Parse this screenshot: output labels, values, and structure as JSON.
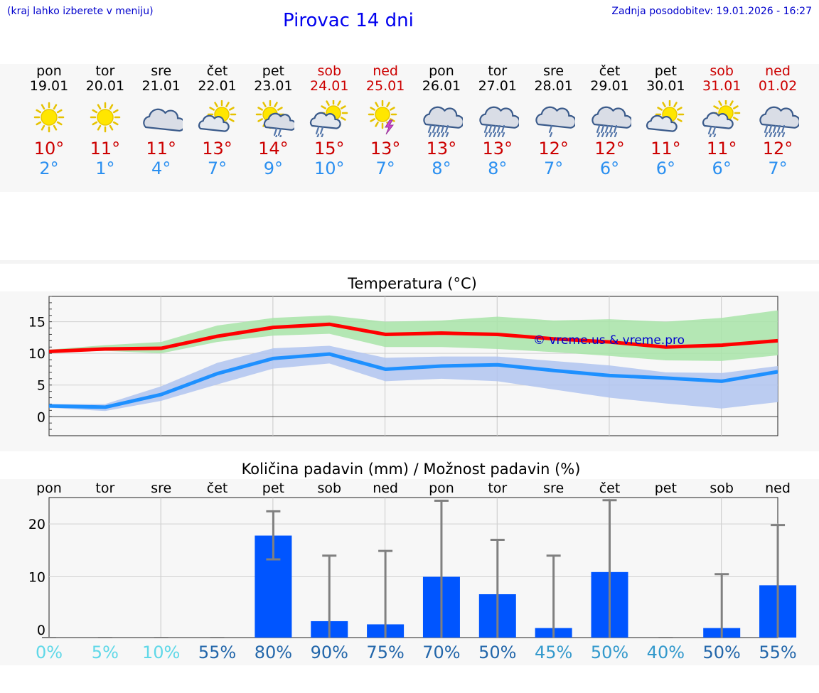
{
  "header": {
    "hint": "(kraj lahko izberete v meniju)",
    "title": "Pirovac 14 dni",
    "updated": "Zadnja posodobitev: 19.01.2026 - 16:27"
  },
  "days": [
    {
      "name": "pon",
      "date": "19.01",
      "weekend": false,
      "icon": "sunny",
      "tmax": "10°",
      "tmin": "2°"
    },
    {
      "name": "tor",
      "date": "20.01",
      "weekend": false,
      "icon": "sunny",
      "tmax": "11°",
      "tmin": "1°"
    },
    {
      "name": "sre",
      "date": "21.01",
      "weekend": false,
      "icon": "cloudy",
      "tmax": "11°",
      "tmin": "4°"
    },
    {
      "name": "čet",
      "date": "22.01",
      "weekend": false,
      "icon": "partly-cloudy",
      "tmax": "13°",
      "tmin": "7°"
    },
    {
      "name": "pet",
      "date": "23.01",
      "weekend": false,
      "icon": "partly-cloudy-rain",
      "tmax": "14°",
      "tmin": "9°"
    },
    {
      "name": "sob",
      "date": "24.01",
      "weekend": true,
      "icon": "partly-cloudy-light-rain",
      "tmax": "15°",
      "tmin": "10°"
    },
    {
      "name": "ned",
      "date": "25.01",
      "weekend": true,
      "icon": "sun-thunder",
      "tmax": "13°",
      "tmin": "7°"
    },
    {
      "name": "pon",
      "date": "26.01",
      "weekend": false,
      "icon": "cloud-rain",
      "tmax": "13°",
      "tmin": "8°"
    },
    {
      "name": "tor",
      "date": "27.01",
      "weekend": false,
      "icon": "cloud-rain",
      "tmax": "13°",
      "tmin": "8°"
    },
    {
      "name": "sre",
      "date": "28.01",
      "weekend": false,
      "icon": "cloud-light-rain",
      "tmax": "12°",
      "tmin": "7°"
    },
    {
      "name": "čet",
      "date": "29.01",
      "weekend": false,
      "icon": "cloud-rain",
      "tmax": "12°",
      "tmin": "6°"
    },
    {
      "name": "pet",
      "date": "30.01",
      "weekend": false,
      "icon": "partly-cloudy",
      "tmax": "11°",
      "tmin": "6°"
    },
    {
      "name": "sob",
      "date": "31.01",
      "weekend": true,
      "icon": "partly-cloudy-light-rain",
      "tmax": "11°",
      "tmin": "6°"
    },
    {
      "name": "ned",
      "date": "01.02",
      "weekend": true,
      "icon": "cloud-rain",
      "tmax": "12°",
      "tmin": "7°"
    }
  ],
  "colors": {
    "max_line": "#ff0000",
    "min_line": "#1e90ff",
    "max_band": "#a8e4a8",
    "min_band": "#b0c4f0",
    "overlap_band": "#80c8a8",
    "bar": "#0055ff",
    "errorbar": "#808080",
    "watermark": "#0000cc"
  },
  "chart_data": [
    {
      "type": "line",
      "title": "Temperatura (°C)",
      "ylim": [
        -3,
        19
      ],
      "yticks": [
        0,
        5,
        10,
        15
      ],
      "watermark": "© vreme.us & vreme.pro",
      "x": [
        0,
        1,
        2,
        3,
        4,
        5,
        6,
        7,
        8,
        9,
        10,
        11,
        12,
        13
      ],
      "series": [
        {
          "name": "max",
          "values": [
            10.3,
            10.7,
            10.8,
            12.7,
            14.1,
            14.6,
            13.0,
            13.2,
            13.0,
            12.3,
            11.8,
            11.0,
            11.3,
            12.0
          ],
          "band_low": [
            10.3,
            10.4,
            10.0,
            11.8,
            12.8,
            13.1,
            11.0,
            11.0,
            10.7,
            10.2,
            9.6,
            8.9,
            8.8,
            9.7
          ],
          "band_high": [
            10.6,
            11.3,
            11.8,
            14.4,
            15.6,
            16.0,
            15.0,
            15.2,
            15.8,
            15.2,
            15.4,
            15.0,
            15.6,
            16.8
          ]
        },
        {
          "name": "min",
          "values": [
            1.7,
            1.5,
            3.5,
            6.8,
            9.2,
            9.9,
            7.5,
            8.0,
            8.2,
            7.3,
            6.5,
            6.1,
            5.6,
            7.1
          ],
          "band_low": [
            1.4,
            0.9,
            2.5,
            5.1,
            7.6,
            8.4,
            5.6,
            6.0,
            5.6,
            4.3,
            3.0,
            2.1,
            1.3,
            2.3
          ],
          "band_high": [
            2.0,
            2.0,
            4.8,
            8.5,
            10.8,
            11.2,
            9.3,
            9.5,
            9.5,
            8.8,
            8.1,
            7.0,
            6.9,
            8.0
          ]
        }
      ]
    },
    {
      "type": "bar",
      "title": "Količina padavin (mm) / Možnost padavin (%)",
      "ylim": [
        -1.5,
        25
      ],
      "yticks": [
        0,
        10,
        20
      ],
      "categories": [
        "pon",
        "tor",
        "sre",
        "čet",
        "pet",
        "sob",
        "ned",
        "pon",
        "tor",
        "sre",
        "čet",
        "pet",
        "sob",
        "ned"
      ],
      "values": [
        0,
        0,
        0,
        0,
        17.8,
        1.6,
        1.0,
        10.0,
        6.7,
        0.3,
        10.9,
        0,
        0.3,
        8.4
      ],
      "error_low": [
        0,
        0,
        0,
        0,
        13.3,
        0,
        0,
        0,
        0,
        0,
        0,
        0,
        0,
        0
      ],
      "error_high": [
        0,
        0,
        0,
        0,
        22.4,
        14.0,
        14.9,
        24.4,
        17.0,
        14.0,
        24.5,
        0,
        10.5,
        19.8
      ],
      "probability": [
        "0%",
        "5%",
        "10%",
        "55%",
        "80%",
        "90%",
        "75%",
        "70%",
        "50%",
        "45%",
        "50%",
        "40%",
        "50%",
        "55%"
      ],
      "probability_colors": [
        "#60d8e8",
        "#60d8e8",
        "#60d8e8",
        "#2266aa",
        "#2266aa",
        "#2266aa",
        "#2266aa",
        "#2266aa",
        "#2266aa",
        "#3399cc",
        "#3399cc",
        "#3399cc",
        "#2266aa",
        "#2266aa"
      ]
    }
  ]
}
